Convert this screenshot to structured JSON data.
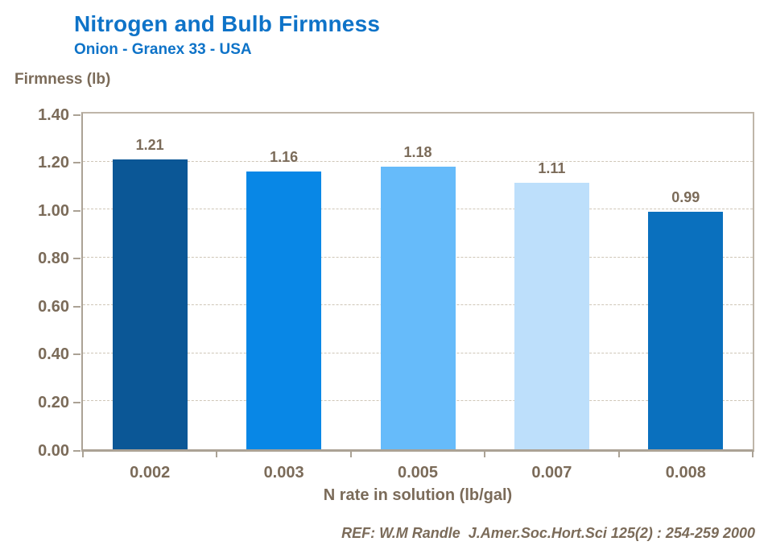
{
  "chart_data": {
    "type": "bar",
    "title": "Nitrogen and Bulb Firmness",
    "subtitle": "Onion - Granex 33 - USA",
    "ylabel": "Firmness (lb)",
    "xlabel": "N rate in solution (lb/gal)",
    "categories": [
      "0.002",
      "0.003",
      "0.005",
      "0.007",
      "0.008"
    ],
    "values": [
      1.21,
      1.16,
      1.18,
      1.11,
      0.99
    ],
    "value_labels": [
      "1.21",
      "1.16",
      "1.18",
      "1.11",
      "0.99"
    ],
    "bar_colors": [
      "#0B5796",
      "#0887E6",
      "#66BBFA",
      "#BDDFFB",
      "#0A70BE"
    ],
    "ylim": [
      0,
      1.4
    ],
    "ytick_step": 0.2,
    "ytick_labels": [
      "0.00",
      "0.20",
      "0.40",
      "0.60",
      "0.80",
      "1.00",
      "1.20",
      "1.40"
    ],
    "grid": "horizontal-dashed",
    "legend": "none"
  },
  "footer": {
    "reference": "REF: W.M Randle  J.Amer.Soc.Hort.Sci 125(2) : 254-259 2000"
  },
  "colors": {
    "title_blue": "#0E73C8",
    "label_brown": "#7B6B59",
    "axis_line": "#ABA295",
    "plot_border": "#BFB6A9",
    "gridline": "#CFC6B7",
    "background": "#FFFFFF"
  }
}
